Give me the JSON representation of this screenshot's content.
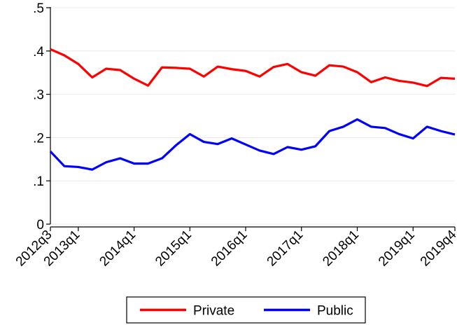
{
  "chart_data": {
    "type": "line",
    "title": "",
    "xlabel": "",
    "ylabel": "",
    "ylim": [
      0,
      0.5
    ],
    "y_ticks": [
      {
        "value": 0,
        "label": "0"
      },
      {
        "value": 0.1,
        "label": ".1"
      },
      {
        "value": 0.2,
        "label": ".2"
      },
      {
        "value": 0.3,
        "label": ".3"
      },
      {
        "value": 0.4,
        "label": ".4"
      },
      {
        "value": 0.5,
        "label": ".5"
      }
    ],
    "x": [
      "2012q3",
      "2012q4",
      "2013q1",
      "2013q2",
      "2013q3",
      "2013q4",
      "2014q1",
      "2014q2",
      "2014q3",
      "2014q4",
      "2015q1",
      "2015q2",
      "2015q3",
      "2015q4",
      "2016q1",
      "2016q2",
      "2016q3",
      "2016q4",
      "2017q1",
      "2017q2",
      "2017q3",
      "2017q4",
      "2018q1",
      "2018q2",
      "2018q3",
      "2018q4",
      "2019q1",
      "2019q2",
      "2019q3",
      "2019q4"
    ],
    "x_tick_labels": [
      "2012q3",
      "2013q1",
      "2014q1",
      "2015q1",
      "2016q1",
      "2017q1",
      "2018q1",
      "2019q1",
      "2019q4"
    ],
    "grid": true,
    "legend_position": "bottom",
    "series": [
      {
        "name": "Private",
        "color": "#ff0000",
        "values": [
          0.404,
          0.39,
          0.37,
          0.339,
          0.359,
          0.356,
          0.336,
          0.32,
          0.362,
          0.361,
          0.359,
          0.341,
          0.364,
          0.358,
          0.354,
          0.341,
          0.363,
          0.37,
          0.351,
          0.343,
          0.367,
          0.364,
          0.351,
          0.328,
          0.339,
          0.331,
          0.327,
          0.319,
          0.338,
          0.336
        ]
      },
      {
        "name": "Public",
        "color": "#0000ff",
        "values": [
          0.168,
          0.134,
          0.132,
          0.126,
          0.143,
          0.152,
          0.14,
          0.14,
          0.152,
          0.182,
          0.208,
          0.19,
          0.185,
          0.198,
          0.184,
          0.17,
          0.162,
          0.178,
          0.172,
          0.18,
          0.215,
          0.225,
          0.242,
          0.225,
          0.222,
          0.208,
          0.198,
          0.225,
          0.215,
          0.207
        ]
      }
    ]
  }
}
